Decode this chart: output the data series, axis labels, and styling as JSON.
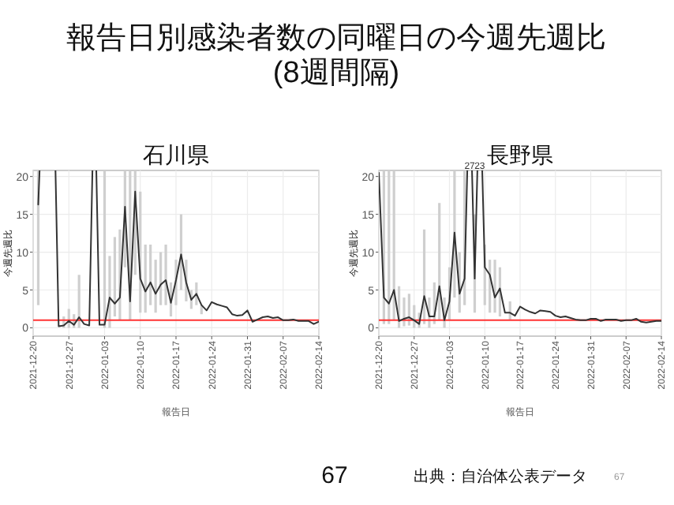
{
  "chart_data": [
    {
      "type": "other",
      "title": "報告日別感染者数の同曜日の今週先週比",
      "subtitle": "(8週間隔)",
      "annotations": [
        "67",
        "出典：自治体公表データ",
        "67"
      ]
    },
    {
      "type": "line",
      "title": "石川県",
      "xlabel": "報告日",
      "ylabel": "今週先週比",
      "x": [
        "2021-12-21",
        "2021-12-22",
        "2021-12-23",
        "2021-12-24",
        "2021-12-25",
        "2021-12-26",
        "2021-12-27",
        "2021-12-28",
        "2021-12-29",
        "2021-12-30",
        "2021-12-31",
        "2022-01-01",
        "2022-01-02",
        "2022-01-03",
        "2022-01-04",
        "2022-01-05",
        "2022-01-06",
        "2022-01-07",
        "2022-01-08",
        "2022-01-09",
        "2022-01-10",
        "2022-01-11",
        "2022-01-12",
        "2022-01-13",
        "2022-01-14",
        "2022-01-15",
        "2022-01-16",
        "2022-01-17",
        "2022-01-18",
        "2022-01-19",
        "2022-01-20",
        "2022-01-21",
        "2022-01-22",
        "2022-01-23",
        "2022-01-24",
        "2022-01-25",
        "2022-01-26",
        "2022-01-27",
        "2022-01-28",
        "2022-01-29",
        "2022-01-30",
        "2022-01-31",
        "2022-02-01",
        "2022-02-02",
        "2022-02-03",
        "2022-02-04",
        "2022-02-05",
        "2022-02-06",
        "2022-02-07",
        "2022-02-08",
        "2022-02-09",
        "2022-02-10",
        "2022-02-11",
        "2022-02-12",
        "2022-02-13",
        "2022-02-14"
      ],
      "series": [
        {
          "color": "#333333",
          "values": [
            16.3,
            null,
            null,
            null,
            0.2,
            0.3,
            0.9,
            0.4,
            1.4,
            0.5,
            0.3,
            null,
            0.4,
            0.4,
            4.0,
            3.2,
            4.0,
            16.0,
            3.5,
            18.0,
            6.5,
            4.8,
            6.0,
            4.5,
            5.7,
            6.3,
            3.3,
            6.3,
            9.7,
            6.0,
            3.7,
            4.5,
            3.0,
            2.3,
            3.4,
            3.1,
            2.9,
            2.7,
            1.8,
            1.6,
            1.7,
            2.3,
            0.8,
            1.1,
            1.4,
            1.5,
            1.3,
            1.4,
            1.0,
            1.0,
            1.1,
            0.9,
            0.9,
            0.9,
            0.5,
            0.8
          ],
          "errors": [
            [
              3,
              20.8
            ],
            null,
            null,
            null,
            null,
            [
              0,
              1.5
            ],
            [
              0,
              2.5
            ],
            [
              0,
              1.8
            ],
            [
              0,
              7
            ],
            null,
            null,
            null,
            null,
            [
              0,
              20.8
            ],
            [
              0,
              9.5
            ],
            [
              1.5,
              12
            ],
            [
              1,
              13
            ],
            [
              8,
              20.8
            ],
            [
              1,
              20.8
            ],
            [
              7,
              20.8
            ],
            [
              2,
              18
            ],
            [
              2,
              11
            ],
            [
              3,
              11
            ],
            [
              2,
              9
            ],
            [
              3,
              10
            ],
            [
              3,
              11
            ],
            [
              1.5,
              6
            ],
            [
              3,
              9
            ],
            [
              5,
              15
            ],
            [
              3.5,
              9
            ],
            [
              2.5,
              5
            ],
            [
              3,
              6
            ],
            [
              1.8,
              3
            ],
            null,
            null,
            null,
            null,
            null,
            null,
            null,
            null,
            null,
            null,
            null,
            null,
            null,
            null,
            null,
            null,
            null,
            null,
            null,
            null,
            null,
            null,
            null
          ]
        }
      ],
      "xlim": [
        "2021-12-20",
        "2022-02-14"
      ],
      "xticks": [
        "2021-12-20",
        "2021-12-27",
        "2022-01-03",
        "2022-01-10",
        "2022-01-17",
        "2022-01-24",
        "2022-01-31",
        "2022-02-07",
        "2022-02-14"
      ],
      "ylim": [
        -1.1,
        20.8
      ],
      "yticks": [
        0,
        5,
        10,
        15,
        20
      ],
      "grid": true,
      "ref_lines": [
        {
          "axis": "y",
          "value": 1,
          "color": "#ff3333"
        }
      ]
    },
    {
      "type": "line",
      "title": "長野県",
      "xlabel": "報告日",
      "ylabel": "今週先週比",
      "x": [
        "2021-12-20",
        "2021-12-21",
        "2021-12-22",
        "2021-12-23",
        "2021-12-24",
        "2021-12-25",
        "2021-12-26",
        "2021-12-27",
        "2021-12-28",
        "2021-12-29",
        "2021-12-30",
        "2021-12-31",
        "2022-01-01",
        "2022-01-02",
        "2022-01-03",
        "2022-01-04",
        "2022-01-05",
        "2022-01-06",
        "2022-01-07",
        "2022-01-08",
        "2022-01-09",
        "2022-01-10",
        "2022-01-11",
        "2022-01-12",
        "2022-01-13",
        "2022-01-14",
        "2022-01-15",
        "2022-01-16",
        "2022-01-17",
        "2022-01-18",
        "2022-01-19",
        "2022-01-20",
        "2022-01-21",
        "2022-01-22",
        "2022-01-23",
        "2022-01-24",
        "2022-01-25",
        "2022-01-26",
        "2022-01-27",
        "2022-01-28",
        "2022-01-29",
        "2022-01-30",
        "2022-01-31",
        "2022-02-01",
        "2022-02-02",
        "2022-02-03",
        "2022-02-04",
        "2022-02-05",
        "2022-02-06",
        "2022-02-07",
        "2022-02-08",
        "2022-02-09",
        "2022-02-10",
        "2022-02-11",
        "2022-02-12",
        "2022-02-13",
        "2022-02-14"
      ],
      "series": [
        {
          "color": "#333333",
          "values": [
            20.5,
            4.0,
            3.2,
            5.0,
            0.9,
            1.2,
            1.4,
            1.0,
            0.5,
            4.2,
            1.5,
            1.5,
            5.5,
            1.0,
            3.5,
            12.6,
            4.5,
            6.5,
            null,
            6.5,
            null,
            8.0,
            7.0,
            4.0,
            5.2,
            2.0,
            2.0,
            1.6,
            2.8,
            2.4,
            2.1,
            1.9,
            2.3,
            2.2,
            2.1,
            1.6,
            1.4,
            1.5,
            1.3,
            1.1,
            1.0,
            1.0,
            1.2,
            1.2,
            0.9,
            1.1,
            1.1,
            1.1,
            0.9,
            1.0,
            1.0,
            1.2,
            0.8,
            0.7,
            0.8,
            0.9,
            0.9
          ],
          "errors": [
            null,
            [
              0.5,
              20.8
            ],
            [
              0.5,
              20.8
            ],
            [
              1,
              20.8
            ],
            [
              0,
              5.5
            ],
            [
              0.2,
              4
            ],
            [
              0.3,
              4.5
            ],
            [
              0,
              3
            ],
            [
              0,
              2
            ],
            [
              0.5,
              13
            ],
            [
              0,
              4
            ],
            [
              0.5,
              6
            ],
            [
              1,
              16.5
            ],
            [
              0,
              4
            ],
            [
              1,
              8
            ],
            [
              4,
              20.8
            ],
            [
              2,
              10
            ],
            [
              3,
              20.8
            ],
            null,
            [
              2,
              15
            ],
            null,
            [
              3,
              11
            ],
            [
              2,
              9
            ],
            [
              2,
              9
            ],
            [
              1.5,
              8
            ],
            null,
            [
              1,
              3.5
            ],
            null,
            null,
            null,
            null,
            null,
            null,
            null,
            null,
            null,
            null,
            null,
            null,
            null,
            null,
            null,
            null,
            null,
            null,
            null,
            null,
            null,
            null,
            null,
            null,
            null,
            null,
            null,
            null,
            null,
            null
          ]
        }
      ],
      "xlim": [
        "2021-12-20",
        "2022-02-14"
      ],
      "xticks": [
        "2021-12-20",
        "2021-12-27",
        "2022-01-03",
        "2022-01-10",
        "2022-01-17",
        "2022-01-24",
        "2022-01-31",
        "2022-02-07",
        "2022-02-14"
      ],
      "ylim": [
        -1.1,
        20.8
      ],
      "yticks": [
        0,
        5,
        10,
        15,
        20
      ],
      "grid": true,
      "annotations": [
        "27",
        "23"
      ],
      "ref_lines": [
        {
          "axis": "y",
          "value": 1,
          "color": "#ff3333"
        }
      ]
    }
  ]
}
